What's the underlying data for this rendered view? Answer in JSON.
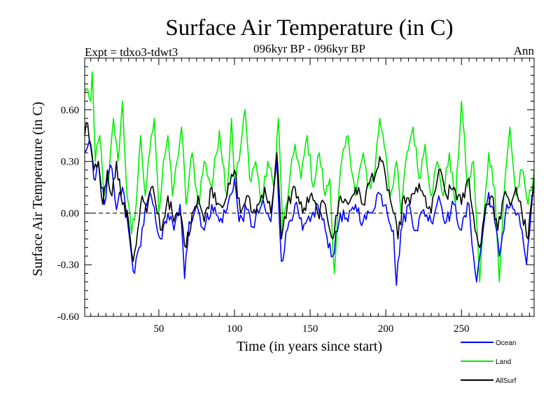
{
  "chart_data": {
    "type": "line",
    "title": "Surface Air Temperature (in C)",
    "subtitle_left": "Expt = tdxo3-tdwt3",
    "subtitle_center": "096kyr BP - 096kyr BP",
    "subtitle_right": "Ann",
    "xlabel": "Time (in years since start)",
    "ylabel": "Surface Air Temperature (in C)",
    "xlim": [
      1,
      298
    ],
    "ylim": [
      -0.6,
      0.9
    ],
    "x_ticks": [
      50,
      100,
      150,
      200,
      250
    ],
    "x_tick_labels": [
      "50",
      "100",
      "150",
      "200",
      "250"
    ],
    "y_ticks": [
      -0.6,
      -0.3,
      0.0,
      0.3,
      0.6
    ],
    "y_tick_labels": [
      "-0.60",
      "-0.30",
      "0.00",
      "0.30",
      "0.60"
    ],
    "zero_line": "dashed",
    "x": {
      "start": 1,
      "end": 298,
      "step": 1
    },
    "series": [
      {
        "name": "Ocean",
        "color": "#0000ff",
        "anchors": [
          [
            1,
            0.35
          ],
          [
            4,
            0.42
          ],
          [
            7,
            0.2
          ],
          [
            10,
            0.3
          ],
          [
            14,
            0.05
          ],
          [
            18,
            0.28
          ],
          [
            22,
            0.02
          ],
          [
            26,
            0.15
          ],
          [
            30,
            -0.1
          ],
          [
            32,
            -0.25
          ],
          [
            34,
            -0.35
          ],
          [
            37,
            -0.2
          ],
          [
            42,
            0.05
          ],
          [
            45,
            0.1
          ],
          [
            48,
            -0.05
          ],
          [
            52,
            -0.15
          ],
          [
            56,
            0.0
          ],
          [
            60,
            -0.1
          ],
          [
            64,
            0.05
          ],
          [
            67,
            -0.38
          ],
          [
            70,
            -0.05
          ],
          [
            75,
            0.05
          ],
          [
            80,
            -0.1
          ],
          [
            85,
            0.05
          ],
          [
            90,
            -0.05
          ],
          [
            95,
            0.02
          ],
          [
            100,
            0.2
          ],
          [
            103,
            -0.05
          ],
          [
            108,
            0.02
          ],
          [
            112,
            -0.08
          ],
          [
            118,
            0.05
          ],
          [
            124,
            -0.05
          ],
          [
            128,
            0.3
          ],
          [
            131,
            -0.28
          ],
          [
            136,
            -0.05
          ],
          [
            140,
            0.05
          ],
          [
            145,
            -0.1
          ],
          [
            150,
            -0.05
          ],
          [
            155,
            0.05
          ],
          [
            160,
            -0.1
          ],
          [
            165,
            -0.25
          ],
          [
            170,
            0.0
          ],
          [
            175,
            -0.05
          ],
          [
            180,
            0.05
          ],
          [
            185,
            -0.05
          ],
          [
            190,
            0.0
          ],
          [
            195,
            0.12
          ],
          [
            200,
            0.05
          ],
          [
            205,
            -0.1
          ],
          [
            207,
            -0.42
          ],
          [
            210,
            -0.1
          ],
          [
            215,
            0.05
          ],
          [
            220,
            -0.1
          ],
          [
            225,
            0.02
          ],
          [
            230,
            -0.05
          ],
          [
            235,
            0.1
          ],
          [
            240,
            -0.05
          ],
          [
            245,
            0.05
          ],
          [
            250,
            -0.1
          ],
          [
            255,
            0.05
          ],
          [
            258,
            -0.25
          ],
          [
            260,
            -0.4
          ],
          [
            265,
            -0.05
          ],
          [
            268,
            0.12
          ],
          [
            272,
            -0.05
          ],
          [
            275,
            -0.25
          ],
          [
            280,
            0.05
          ],
          [
            285,
            0.02
          ],
          [
            290,
            -0.1
          ],
          [
            293,
            -0.3
          ],
          [
            298,
            0.15
          ]
        ]
      },
      {
        "name": "Land",
        "color": "#00ee00",
        "anchors": [
          [
            1,
            0.7
          ],
          [
            3,
            0.72
          ],
          [
            5,
            0.65
          ],
          [
            6,
            0.82
          ],
          [
            8,
            0.3
          ],
          [
            11,
            0.45
          ],
          [
            14,
            0.1
          ],
          [
            17,
            0.2
          ],
          [
            20,
            0.55
          ],
          [
            23,
            0.3
          ],
          [
            26,
            0.65
          ],
          [
            29,
            0.1
          ],
          [
            32,
            -0.12
          ],
          [
            35,
            0.05
          ],
          [
            38,
            0.45
          ],
          [
            41,
            0.1
          ],
          [
            44,
            0.35
          ],
          [
            47,
            0.55
          ],
          [
            50,
            0.0
          ],
          [
            53,
            0.3
          ],
          [
            56,
            0.45
          ],
          [
            59,
            0.1
          ],
          [
            62,
            0.3
          ],
          [
            65,
            0.5
          ],
          [
            68,
            0.05
          ],
          [
            72,
            0.35
          ],
          [
            76,
            0.05
          ],
          [
            80,
            0.3
          ],
          [
            85,
            0.15
          ],
          [
            90,
            0.48
          ],
          [
            95,
            0.1
          ],
          [
            98,
            0.55
          ],
          [
            100,
            0.2
          ],
          [
            103,
            0.3
          ],
          [
            107,
            0.6
          ],
          [
            110,
            0.2
          ],
          [
            114,
            0.3
          ],
          [
            118,
            0.05
          ],
          [
            122,
            0.3
          ],
          [
            126,
            0.15
          ],
          [
            129,
            0.55
          ],
          [
            132,
            -0.1
          ],
          [
            136,
            0.15
          ],
          [
            140,
            0.4
          ],
          [
            144,
            0.2
          ],
          [
            148,
            0.45
          ],
          [
            152,
            0.15
          ],
          [
            156,
            0.35
          ],
          [
            160,
            0.1
          ],
          [
            163,
            0.2
          ],
          [
            166,
            -0.35
          ],
          [
            170,
            0.25
          ],
          [
            175,
            0.45
          ],
          [
            180,
            0.1
          ],
          [
            185,
            0.35
          ],
          [
            188,
            0.15
          ],
          [
            192,
            0.2
          ],
          [
            196,
            0.55
          ],
          [
            200,
            0.35
          ],
          [
            203,
            0.1
          ],
          [
            207,
            0.3
          ],
          [
            210,
            0.0
          ],
          [
            214,
            0.35
          ],
          [
            218,
            0.5
          ],
          [
            222,
            0.2
          ],
          [
            226,
            0.4
          ],
          [
            230,
            0.1
          ],
          [
            234,
            0.3
          ],
          [
            238,
            0.1
          ],
          [
            242,
            0.35
          ],
          [
            246,
            0.05
          ],
          [
            250,
            0.65
          ],
          [
            254,
            0.15
          ],
          [
            258,
            0.3
          ],
          [
            262,
            -0.4
          ],
          [
            265,
            0.0
          ],
          [
            268,
            0.35
          ],
          [
            272,
            0.15
          ],
          [
            275,
            -0.4
          ],
          [
            278,
            0.1
          ],
          [
            282,
            0.5
          ],
          [
            286,
            0.1
          ],
          [
            290,
            0.25
          ],
          [
            294,
            0.05
          ],
          [
            298,
            0.25
          ]
        ]
      },
      {
        "name": "AllSurf",
        "color": "#000000",
        "anchors": [
          [
            1,
            0.45
          ],
          [
            3,
            0.52
          ],
          [
            5,
            0.4
          ],
          [
            7,
            0.25
          ],
          [
            10,
            0.3
          ],
          [
            13,
            0.05
          ],
          [
            16,
            0.25
          ],
          [
            19,
            0.1
          ],
          [
            22,
            0.3
          ],
          [
            26,
            0.05
          ],
          [
            30,
            -0.05
          ],
          [
            33,
            -0.28
          ],
          [
            36,
            -0.1
          ],
          [
            39,
            0.1
          ],
          [
            42,
            0.0
          ],
          [
            45,
            0.15
          ],
          [
            48,
            0.05
          ],
          [
            52,
            -0.1
          ],
          [
            56,
            0.1
          ],
          [
            60,
            -0.05
          ],
          [
            64,
            0.0
          ],
          [
            68,
            -0.2
          ],
          [
            72,
            0.0
          ],
          [
            76,
            0.1
          ],
          [
            80,
            -0.05
          ],
          [
            85,
            0.15
          ],
          [
            90,
            0.05
          ],
          [
            95,
            0.1
          ],
          [
            100,
            0.25
          ],
          [
            104,
            0.0
          ],
          [
            108,
            0.1
          ],
          [
            112,
            0.0
          ],
          [
            116,
            0.05
          ],
          [
            120,
            0.15
          ],
          [
            124,
            0.0
          ],
          [
            128,
            0.35
          ],
          [
            131,
            -0.15
          ],
          [
            135,
            0.05
          ],
          [
            140,
            0.15
          ],
          [
            145,
            0.0
          ],
          [
            150,
            0.1
          ],
          [
            155,
            0.0
          ],
          [
            160,
            0.05
          ],
          [
            165,
            -0.15
          ],
          [
            170,
            0.1
          ],
          [
            175,
            0.05
          ],
          [
            180,
            0.15
          ],
          [
            185,
            0.05
          ],
          [
            190,
            0.2
          ],
          [
            194,
            0.25
          ],
          [
            197,
            0.3
          ],
          [
            200,
            0.2
          ],
          [
            205,
            0.0
          ],
          [
            208,
            -0.15
          ],
          [
            212,
            0.1
          ],
          [
            216,
            0.05
          ],
          [
            220,
            0.15
          ],
          [
            225,
            0.1
          ],
          [
            230,
            0.0
          ],
          [
            235,
            0.25
          ],
          [
            240,
            0.1
          ],
          [
            245,
            0.15
          ],
          [
            250,
            0.05
          ],
          [
            255,
            0.2
          ],
          [
            259,
            -0.1
          ],
          [
            262,
            -0.2
          ],
          [
            266,
            0.05
          ],
          [
            270,
            0.1
          ],
          [
            274,
            -0.1
          ],
          [
            278,
            0.1
          ],
          [
            282,
            0.05
          ],
          [
            286,
            0.15
          ],
          [
            290,
            0.0
          ],
          [
            294,
            -0.15
          ],
          [
            298,
            0.2
          ]
        ]
      }
    ],
    "legend": {
      "placement": "bottom-right",
      "entries": [
        "Ocean",
        "Land",
        "AllSurf"
      ]
    }
  }
}
